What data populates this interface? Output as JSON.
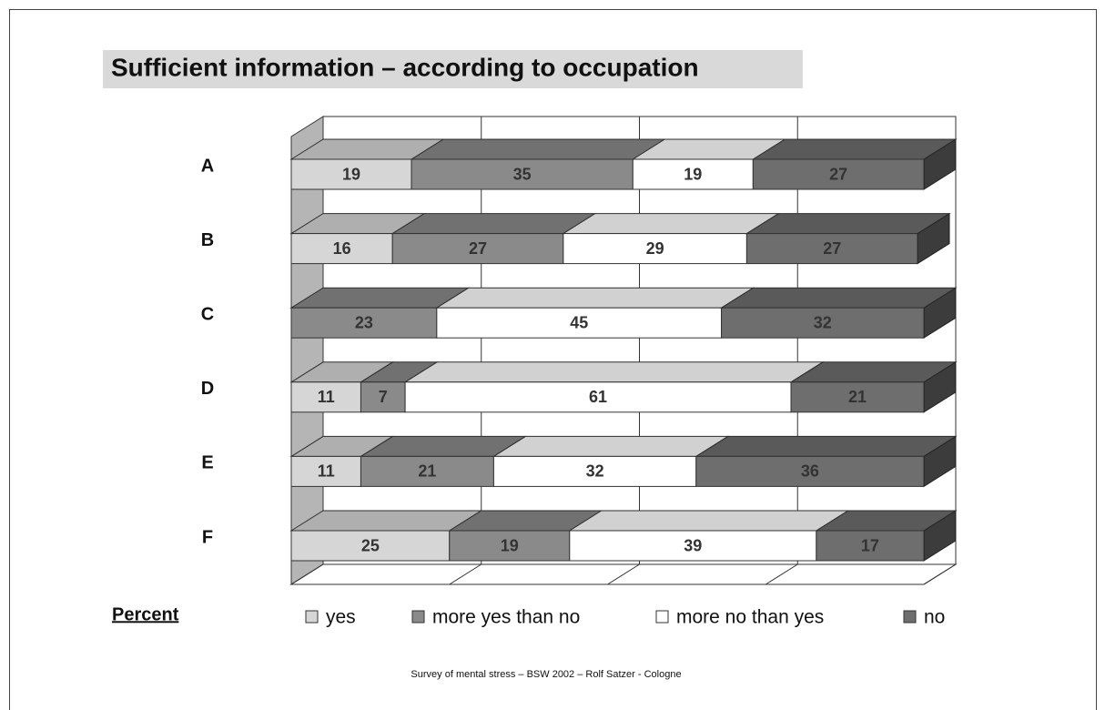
{
  "chart_data": {
    "type": "bar",
    "orientation": "horizontal",
    "stacked": true,
    "title": "Sufficient information – according to occupation",
    "categories": [
      "A",
      "B",
      "C",
      "D",
      "E",
      "F"
    ],
    "series": [
      {
        "name": "yes",
        "color": "#d6d6d6",
        "values": [
          19,
          16,
          null,
          11,
          11,
          25
        ]
      },
      {
        "name": "more yes than no",
        "color": "#8a8a8a",
        "values": [
          35,
          27,
          23,
          7,
          21,
          19
        ]
      },
      {
        "name": "more no than yes",
        "color": "#ffffff",
        "values": [
          19,
          29,
          45,
          61,
          32,
          39
        ]
      },
      {
        "name": "no",
        "color": "#6e6e6e",
        "values": [
          27,
          27,
          32,
          21,
          36,
          17
        ]
      }
    ],
    "xlim": [
      0,
      100
    ],
    "xticks": [
      0,
      25,
      50,
      75,
      100
    ],
    "grid": true,
    "legend_title": "Percent",
    "footer": "Survey of mental stress – BSW 2002 –  Rolf Satzer - Cologne"
  }
}
